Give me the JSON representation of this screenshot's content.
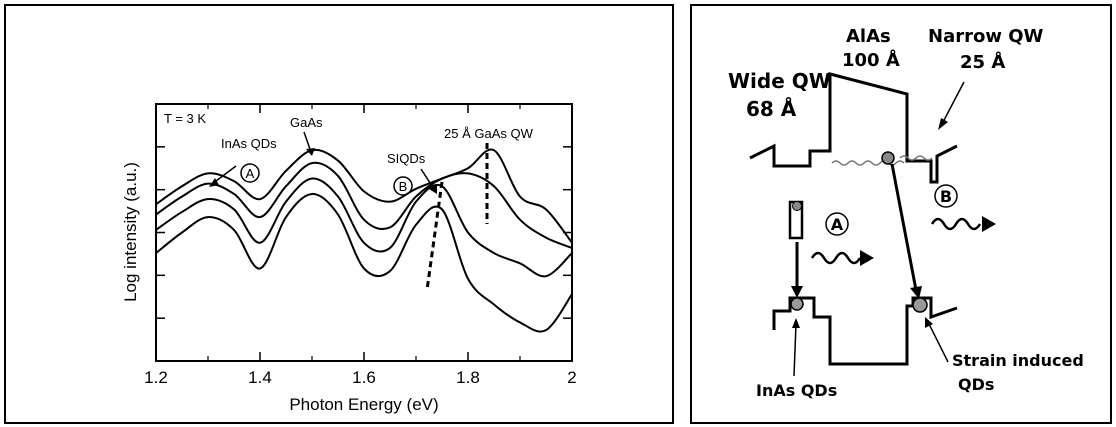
{
  "chart_data": {
    "type": "line",
    "xlabel": "Photon Energy (eV)",
    "ylabel": "Log intensity (a.u.)",
    "xlim": [
      1.2,
      2.0
    ],
    "xticks": [
      "1.2",
      "1.4",
      "1.6",
      "1.8",
      "2"
    ],
    "ylim": [
      0,
      10
    ],
    "y_ticks_labeled": false,
    "grid": false,
    "temperature_label": "T = 3 K",
    "annotations": {
      "inas_qds": "InAs QDs",
      "gaas": "GaAs",
      "siqds": "SIQDs",
      "qw25": "25 Å GaAs QW",
      "circle_a": "A",
      "circle_b": "B"
    },
    "series": [
      {
        "x": [
          1.2,
          1.25,
          1.3,
          1.35,
          1.4,
          1.45,
          1.5,
          1.55,
          1.6,
          1.65,
          1.7,
          1.75,
          1.8,
          1.85,
          1.9,
          1.95,
          2.0
        ],
        "values": [
          6.1,
          6.8,
          7.3,
          7.0,
          6.3,
          7.4,
          8.2,
          7.8,
          6.6,
          6.2,
          6.7,
          7.1,
          7.5,
          8.2,
          6.4,
          5.9,
          4.6
        ]
      },
      {
        "x": [
          1.2,
          1.25,
          1.3,
          1.35,
          1.4,
          1.45,
          1.5,
          1.55,
          1.6,
          1.65,
          1.7,
          1.75,
          1.8,
          1.85,
          1.9,
          1.95,
          2.0
        ],
        "values": [
          5.7,
          6.4,
          6.9,
          6.5,
          5.6,
          6.8,
          7.7,
          7.2,
          5.5,
          5.2,
          6.4,
          7.1,
          7.3,
          6.8,
          5.5,
          4.8,
          4.4
        ]
      },
      {
        "x": [
          1.2,
          1.25,
          1.3,
          1.35,
          1.4,
          1.45,
          1.5,
          1.55,
          1.6,
          1.65,
          1.7,
          1.75,
          1.8,
          1.85,
          1.9,
          1.95,
          2.0
        ],
        "values": [
          5.1,
          5.8,
          6.3,
          5.9,
          4.6,
          6.2,
          7.1,
          6.4,
          4.6,
          4.4,
          6.2,
          6.8,
          5.0,
          4.2,
          3.8,
          3.3,
          4.2
        ]
      },
      {
        "x": [
          1.2,
          1.25,
          1.3,
          1.35,
          1.4,
          1.45,
          1.5,
          1.55,
          1.6,
          1.65,
          1.7,
          1.75,
          1.8,
          1.85,
          1.9,
          1.95,
          2.0
        ],
        "values": [
          4.2,
          5.0,
          5.6,
          5.1,
          3.6,
          5.6,
          6.5,
          5.7,
          3.6,
          3.5,
          5.3,
          5.9,
          3.2,
          2.2,
          1.5,
          1.2,
          2.6
        ]
      }
    ]
  },
  "diagram": {
    "wide_qw_name": "Wide QW",
    "wide_qw_size": "68 Å",
    "alas_name": "AlAs",
    "alas_size": "100 Å",
    "narrow_qw_name": "Narrow QW",
    "narrow_qw_size": "25 Å",
    "inas_qds": "InAs QDs",
    "strain_line1": "Strain induced",
    "strain_line2": "QDs",
    "circle_a": "A",
    "circle_b": "B"
  }
}
